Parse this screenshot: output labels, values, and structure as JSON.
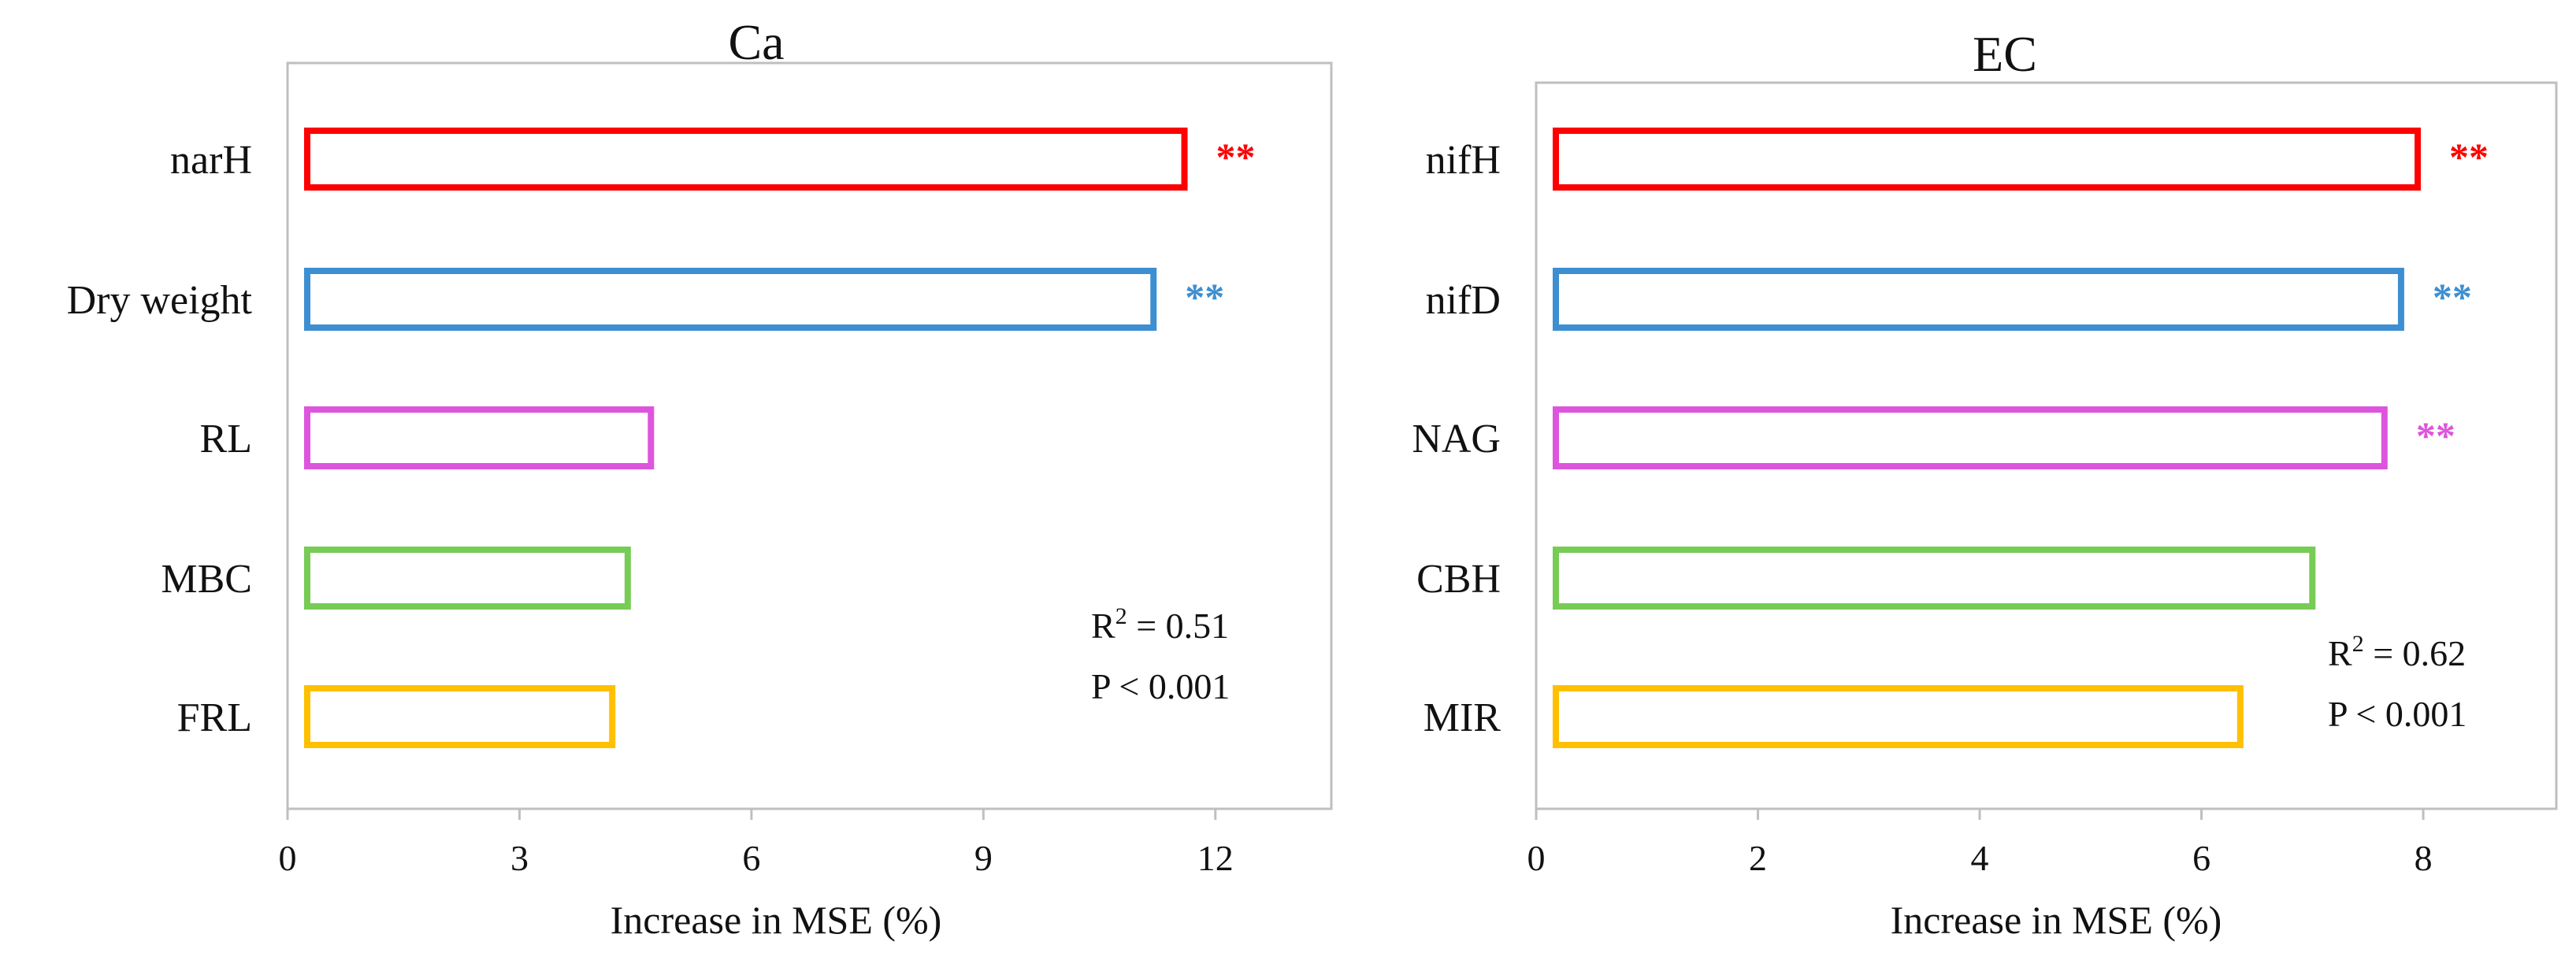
{
  "chart_data": [
    {
      "type": "bar",
      "orientation": "horizontal",
      "title": "Ca",
      "xlabel": "Increase in MSE (%)",
      "ylabel": "",
      "xlim": [
        0,
        13.5
      ],
      "xticks": [
        0,
        3,
        6,
        9,
        12
      ],
      "categories": [
        "narH",
        "Dry weight",
        "RL",
        "MBC",
        "FRL"
      ],
      "values": [
        11.6,
        11.2,
        4.7,
        4.4,
        4.2
      ],
      "bar_colors": [
        "#ff0000",
        "#3d8fd1",
        "#dd55dd",
        "#77cc55",
        "#ffc000"
      ],
      "significance": [
        "**",
        "**",
        "",
        "",
        ""
      ],
      "stats": {
        "r2_label": "R",
        "r2_sup": "2",
        "r2_value": " = 0.51",
        "p_text": "P < 0.001"
      },
      "grid": false
    },
    {
      "type": "bar",
      "orientation": "horizontal",
      "title": "EC",
      "xlabel": "Increase in MSE (%)",
      "ylabel": "",
      "xlim": [
        0,
        9.2
      ],
      "xticks": [
        0,
        2,
        4,
        6,
        8
      ],
      "categories": [
        "nifH",
        "nifD",
        "NAG",
        "CBH",
        "MIR"
      ],
      "values": [
        7.95,
        7.8,
        7.65,
        7.0,
        6.35
      ],
      "bar_colors": [
        "#ff0000",
        "#3d8fd1",
        "#dd55dd",
        "#77cc55",
        "#ffc000"
      ],
      "significance": [
        "**",
        "**",
        "**",
        "",
        ""
      ],
      "stats": {
        "r2_label": "R",
        "r2_sup": "2",
        "r2_value": " = 0.62",
        "p_text": "P < 0.001"
      },
      "grid": false
    }
  ]
}
